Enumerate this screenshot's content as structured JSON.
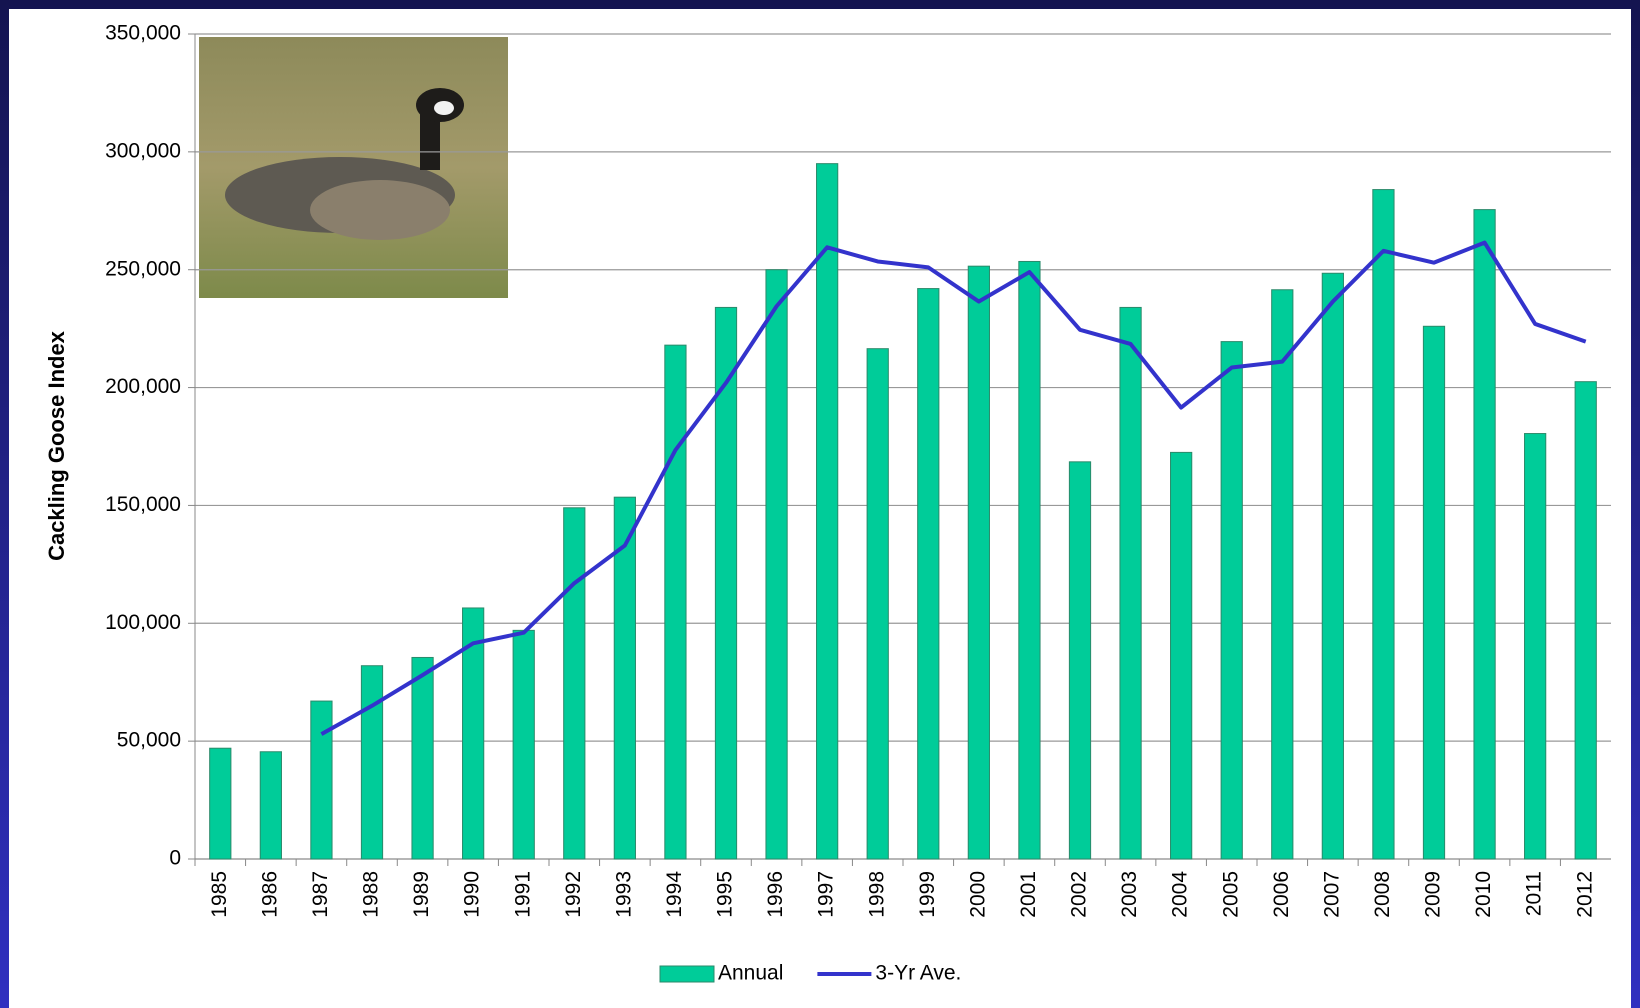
{
  "chart_data": {
    "type": "bar",
    "y_label": "Cackling Goose Index",
    "categories": [
      "1985",
      "1986",
      "1987",
      "1988",
      "1989",
      "1990",
      "1991",
      "1992",
      "1993",
      "1994",
      "1995",
      "1996",
      "1997",
      "1998",
      "1999",
      "2000",
      "2001",
      "2002",
      "2003",
      "2004",
      "2005",
      "2006",
      "2007",
      "2008",
      "2009",
      "2010",
      "2011",
      "2012"
    ],
    "series": [
      {
        "name": "Annual",
        "type": "bar",
        "color": "#00cc99",
        "values": [
          47000,
          45500,
          67000,
          82000,
          85500,
          106500,
          97000,
          149000,
          153500,
          218000,
          234000,
          250000,
          295000,
          216500,
          242000,
          251500,
          253500,
          168500,
          234000,
          172500,
          219500,
          241500,
          248500,
          284000,
          226000,
          275500,
          180500,
          202500
        ]
      },
      {
        "name": "3-Yr Ave.",
        "type": "line",
        "color": "#3333cc",
        "values": [
          null,
          null,
          53000,
          65000,
          78000,
          91500,
          96000,
          117000,
          133000,
          173500,
          202000,
          234500,
          259500,
          253500,
          251000,
          236500,
          249000,
          224500,
          218500,
          191500,
          208500,
          211000,
          236500,
          258000,
          253000,
          261500,
          227000,
          219500
        ]
      }
    ],
    "ylim": [
      0,
      350000
    ],
    "yticks": [
      0,
      {
        "value": 50000,
        "label": "50,000"
      },
      {
        "value": 100000,
        "label": "100,000"
      },
      {
        "value": 150000,
        "label": "150,000"
      },
      {
        "value": 200000,
        "label": "200,000"
      },
      {
        "value": 250000,
        "label": "250,000"
      },
      {
        "value": 300000,
        "label": "300,000"
      },
      {
        "value": 350000,
        "label": "350,000"
      }
    ],
    "grid": true,
    "legend": "bottom"
  }
}
